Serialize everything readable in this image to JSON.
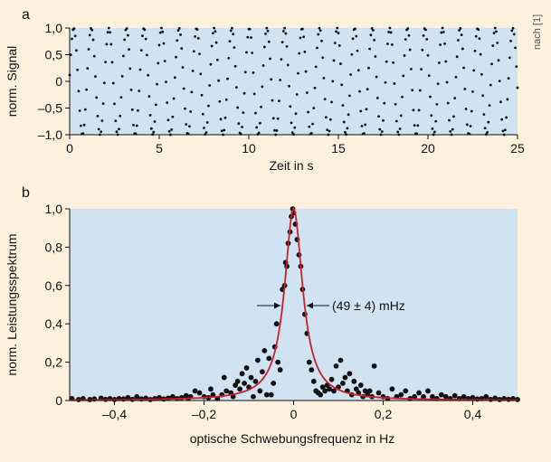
{
  "credit": "nach [1]",
  "chart_data": [
    {
      "panel": "a",
      "type": "scatter",
      "xlabel": "Zeit in s",
      "ylabel": "norm. Signal",
      "xlim": [
        0,
        25
      ],
      "ylim": [
        -1.0,
        1.0
      ],
      "xticks": [
        0,
        5,
        10,
        15,
        20,
        25
      ],
      "xtick_labels": [
        "0",
        "5",
        "10",
        "15",
        "20",
        "25"
      ],
      "yticks": [
        -1.0,
        -0.5,
        0,
        0.5,
        1.0
      ],
      "ytick_labels": [
        "–1,0",
        "–0,5",
        "0",
        "0,5",
        "1,0"
      ],
      "signal": {
        "form": "sine",
        "amplitude": 1.0,
        "frequency_hz": 1.02,
        "phase_rad": 0.12,
        "duration_s": 25,
        "sample_rate_hz": 16
      },
      "background": "#cfe3f2",
      "marker_color": "#111111"
    },
    {
      "panel": "b",
      "type": "scatter",
      "xlabel": "optische Schwebungsfrequenz in Hz",
      "ylabel": "norm. Leistungsspektrum",
      "xlim": [
        -0.5,
        0.5
      ],
      "ylim": [
        0,
        1.0
      ],
      "xticks": [
        -0.4,
        -0.2,
        0,
        0.2,
        0.4
      ],
      "xtick_labels": [
        "–0,4",
        "–0,2",
        "0",
        "0,2",
        "0,4"
      ],
      "yticks": [
        0,
        0.2,
        0.4,
        0.6,
        0.8,
        1.0
      ],
      "ytick_labels": [
        "0",
        "0,2",
        "0,4",
        "0,6",
        "0,8",
        "1,0"
      ],
      "annotation": "(49 ± 4) mHz",
      "fit": {
        "form": "lorentzian",
        "center_hz": 0,
        "fwhm_hz": 0.049,
        "amplitude": 1.0,
        "color": "#cc1f2e"
      },
      "points": [
        [
          -0.495,
          0.01
        ],
        [
          -0.48,
          0.005
        ],
        [
          -0.47,
          0.01
        ],
        [
          -0.455,
          0.005
        ],
        [
          -0.445,
          0.008
        ],
        [
          -0.43,
          0.012
        ],
        [
          -0.42,
          0.006
        ],
        [
          -0.41,
          0.01
        ],
        [
          -0.4,
          0.005
        ],
        [
          -0.39,
          0.01
        ],
        [
          -0.38,
          0.008
        ],
        [
          -0.37,
          0.015
        ],
        [
          -0.36,
          0.006
        ],
        [
          -0.35,
          0.02
        ],
        [
          -0.34,
          0.008
        ],
        [
          -0.33,
          0.012
        ],
        [
          -0.32,
          0.005
        ],
        [
          -0.31,
          0.01
        ],
        [
          -0.3,
          0.015
        ],
        [
          -0.29,
          0.008
        ],
        [
          -0.28,
          0.012
        ],
        [
          -0.27,
          0.02
        ],
        [
          -0.26,
          0.01
        ],
        [
          -0.25,
          0.015
        ],
        [
          -0.24,
          0.025
        ],
        [
          -0.235,
          0.01
        ],
        [
          -0.23,
          0.02
        ],
        [
          -0.22,
          0.05
        ],
        [
          -0.21,
          0.04
        ],
        [
          -0.2,
          0.02
        ],
        [
          -0.19,
          0.015
        ],
        [
          -0.185,
          0.06
        ],
        [
          -0.18,
          0.03
        ],
        [
          -0.17,
          0.01
        ],
        [
          -0.16,
          0.03
        ],
        [
          -0.155,
          0.12
        ],
        [
          -0.15,
          0.05
        ],
        [
          -0.14,
          0.04
        ],
        [
          -0.135,
          0.02
        ],
        [
          -0.13,
          0.08
        ],
        [
          -0.125,
          0.1
        ],
        [
          -0.12,
          0.06
        ],
        [
          -0.115,
          0.14
        ],
        [
          -0.11,
          0.09
        ],
        [
          -0.105,
          0.17
        ],
        [
          -0.1,
          0.07
        ],
        [
          -0.095,
          0.12
        ],
        [
          -0.09,
          0.02
        ],
        [
          -0.085,
          0.1
        ],
        [
          -0.08,
          0.21
        ],
        [
          -0.075,
          0.05
        ],
        [
          -0.07,
          0.15
        ],
        [
          -0.065,
          0.26
        ],
        [
          -0.06,
          0.03
        ],
        [
          -0.055,
          0.22
        ],
        [
          -0.05,
          0.03
        ],
        [
          -0.045,
          0.09
        ],
        [
          -0.042,
          0.28
        ],
        [
          -0.038,
          0.4
        ],
        [
          -0.035,
          0.2
        ],
        [
          -0.03,
          0.16
        ],
        [
          -0.025,
          0.58
        ],
        [
          -0.02,
          0.6
        ],
        [
          -0.018,
          0.72
        ],
        [
          -0.015,
          0.7
        ],
        [
          -0.012,
          0.82
        ],
        [
          -0.008,
          0.88
        ],
        [
          -0.005,
          0.96
        ],
        [
          -0.002,
          1.0
        ],
        [
          0.0,
          0.98
        ],
        [
          0.004,
          0.92
        ],
        [
          0.008,
          0.84
        ],
        [
          0.012,
          0.76
        ],
        [
          0.016,
          0.7
        ],
        [
          0.02,
          0.58
        ],
        [
          0.025,
          0.45
        ],
        [
          0.03,
          0.35
        ],
        [
          0.035,
          0.2
        ],
        [
          0.04,
          0.16
        ],
        [
          0.045,
          0.1
        ],
        [
          0.05,
          0.05
        ],
        [
          0.055,
          0.04
        ],
        [
          0.06,
          0.03
        ],
        [
          0.065,
          0.07
        ],
        [
          0.07,
          0.05
        ],
        [
          0.075,
          0.08
        ],
        [
          0.08,
          0.06
        ],
        [
          0.085,
          0.11
        ],
        [
          0.09,
          0.05
        ],
        [
          0.095,
          0.18
        ],
        [
          0.1,
          0.07
        ],
        [
          0.105,
          0.21
        ],
        [
          0.11,
          0.09
        ],
        [
          0.115,
          0.12
        ],
        [
          0.12,
          0.05
        ],
        [
          0.125,
          0.14
        ],
        [
          0.13,
          0.03
        ],
        [
          0.135,
          0.1
        ],
        [
          0.14,
          0.06
        ],
        [
          0.145,
          0.04
        ],
        [
          0.15,
          0.08
        ],
        [
          0.155,
          0.02
        ],
        [
          0.16,
          0.05
        ],
        [
          0.165,
          0.03
        ],
        [
          0.17,
          0.05
        ],
        [
          0.175,
          0.02
        ],
        [
          0.18,
          0.18
        ],
        [
          0.19,
          0.04
        ],
        [
          0.2,
          0.02
        ],
        [
          0.21,
          0.01
        ],
        [
          0.22,
          0.06
        ],
        [
          0.23,
          0.02
        ],
        [
          0.24,
          0.03
        ],
        [
          0.25,
          0.05
        ],
        [
          0.26,
          0.01
        ],
        [
          0.27,
          0.02
        ],
        [
          0.28,
          0.04
        ],
        [
          0.29,
          0.02
        ],
        [
          0.3,
          0.05
        ],
        [
          0.31,
          0.02
        ],
        [
          0.32,
          0.01
        ],
        [
          0.33,
          0.03
        ],
        [
          0.34,
          0.02
        ],
        [
          0.35,
          0.01
        ],
        [
          0.36,
          0.025
        ],
        [
          0.37,
          0.01
        ],
        [
          0.38,
          0.02
        ],
        [
          0.39,
          0.01
        ],
        [
          0.4,
          0.015
        ],
        [
          0.41,
          0.008
        ],
        [
          0.42,
          0.01
        ],
        [
          0.43,
          0.02
        ],
        [
          0.44,
          0.006
        ],
        [
          0.45,
          0.012
        ],
        [
          0.46,
          0.005
        ],
        [
          0.47,
          0.01
        ],
        [
          0.48,
          0.006
        ],
        [
          0.49,
          0.01
        ],
        [
          0.5,
          0.005
        ]
      ],
      "background": "#cfe3f2",
      "marker_color": "#111111"
    }
  ]
}
